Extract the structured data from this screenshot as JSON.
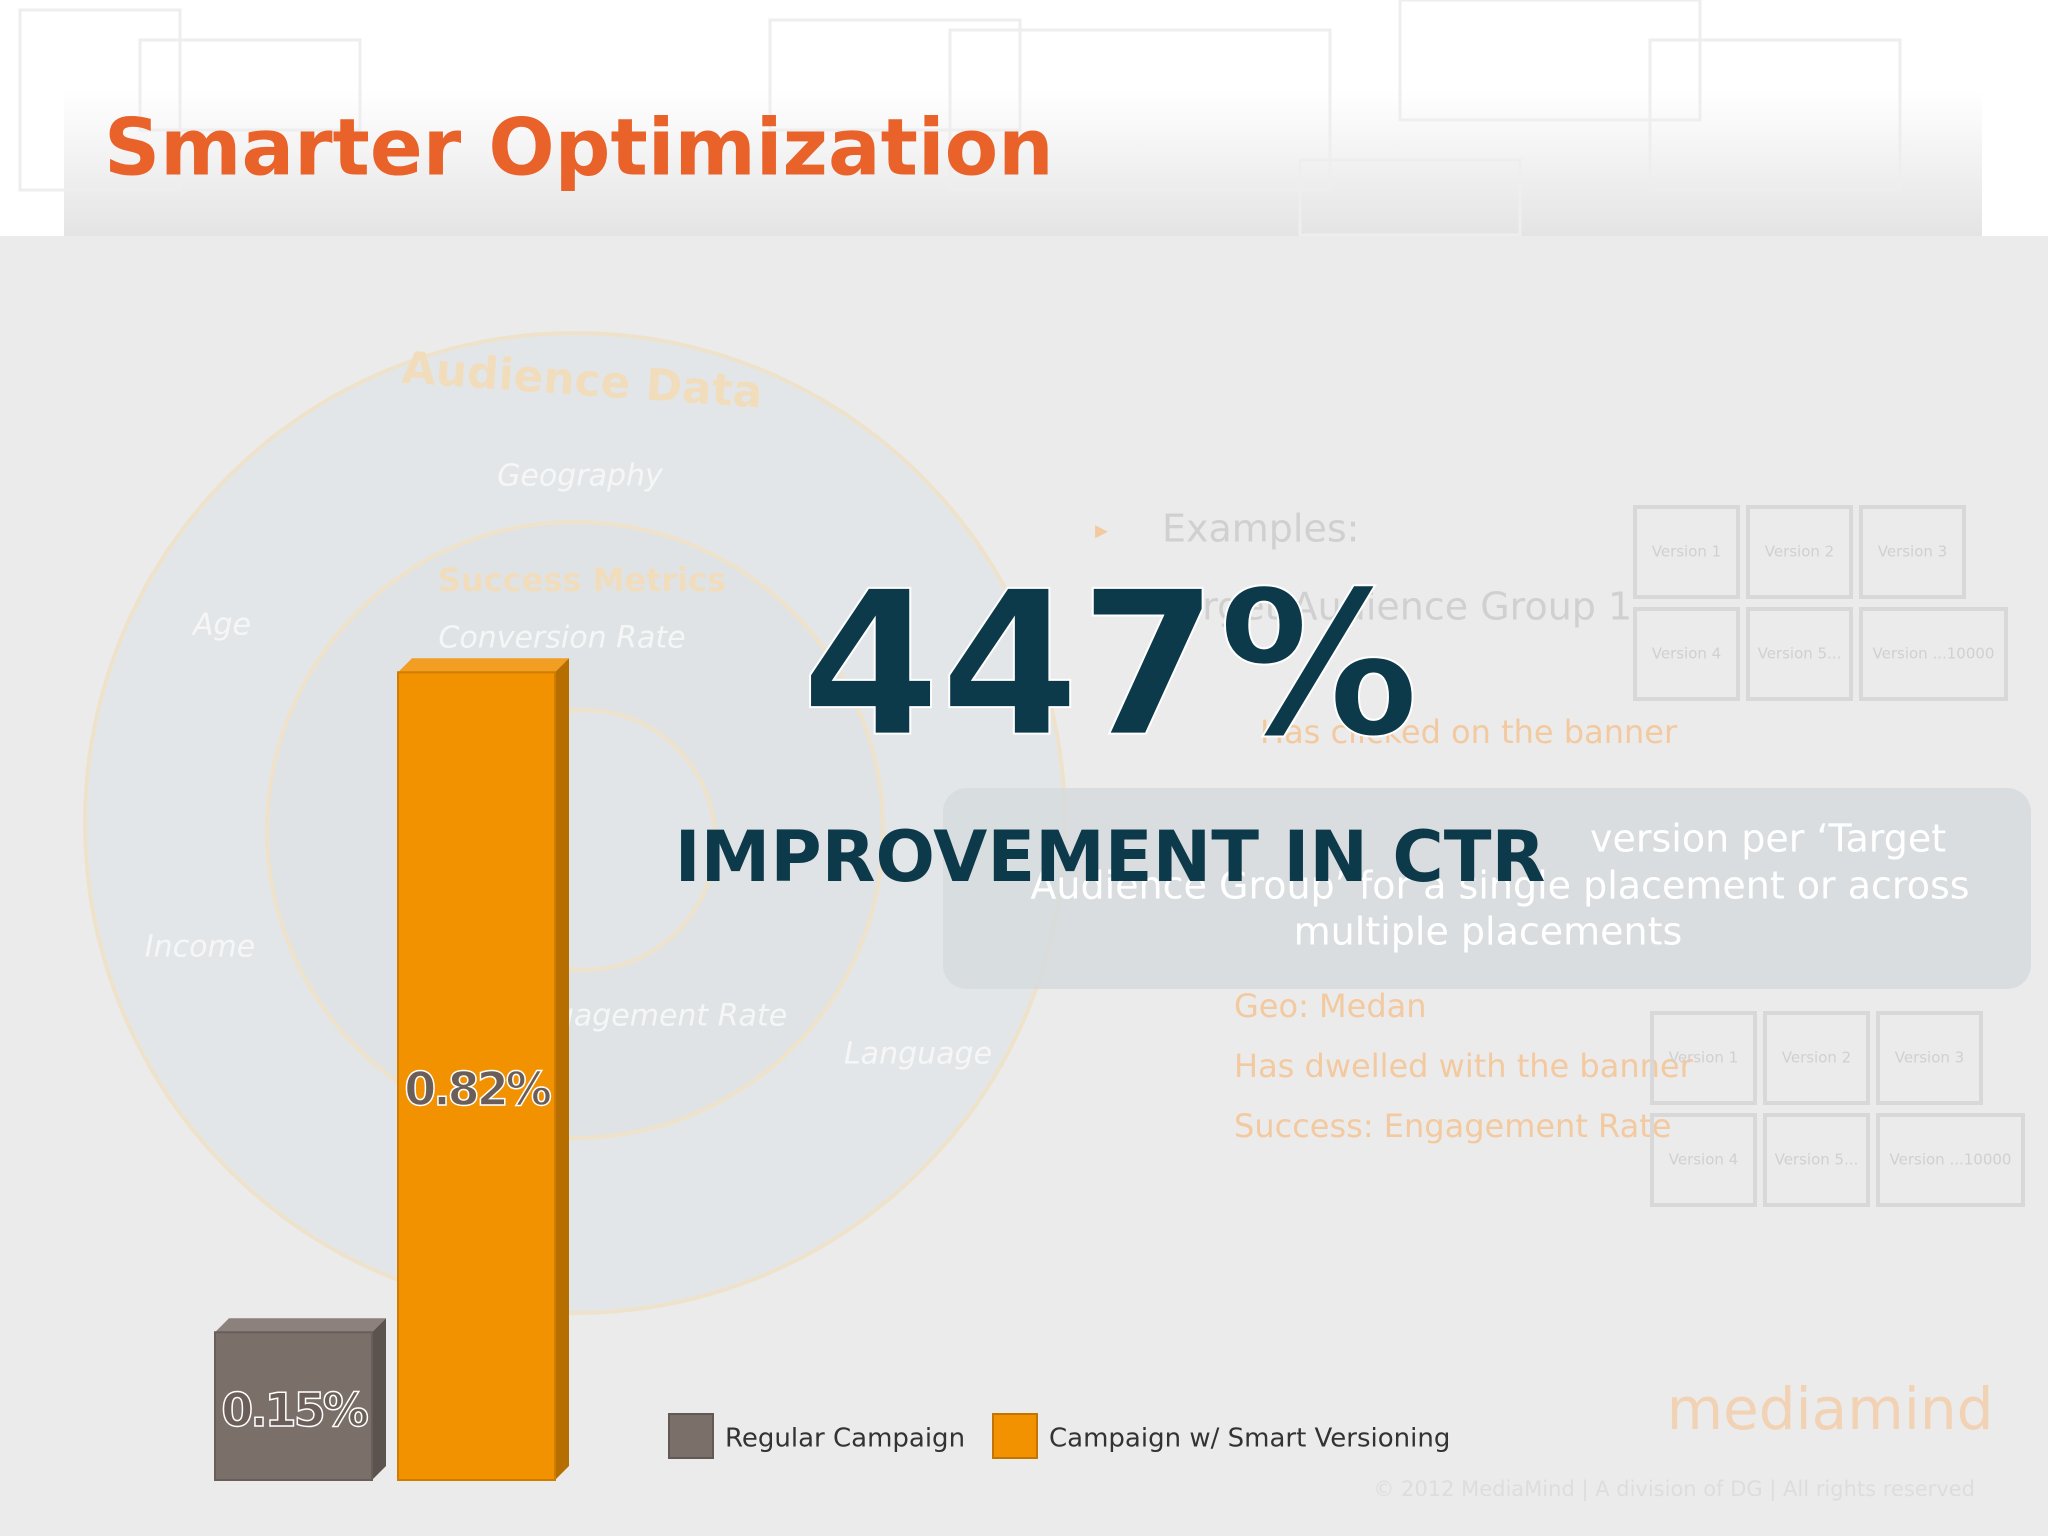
{
  "chart_data": {
    "type": "bar",
    "title": "Smarter Optimization",
    "annotations": [
      "447%",
      "IMPROVEMENT IN CTR"
    ],
    "series": [
      {
        "name": "Regular Campaign",
        "color": "#7b6f69",
        "values": [
          0.15
        ],
        "value_labels": [
          "0.15%"
        ]
      },
      {
        "name": "Campaign w/ Smart Versioning",
        "color": "#f39200",
        "values": [
          0.82
        ],
        "value_labels": [
          "0.82%"
        ]
      }
    ]
  },
  "background": {
    "circle_labels": [
      "Audience Data",
      "Geography",
      "Age",
      "Income",
      "Language",
      "Success Metrics",
      "Conversion Rate",
      "Engagement Rate"
    ],
    "bullets": [
      "Examples:",
      "Target Audience Group 1",
      "Has clicked on the banner",
      "Geo: Medan",
      "Has dwelled with the banner",
      "Success: Engagement Rate"
    ],
    "panel_text": [
      "version per ‘Target",
      "Audience Group’ for a single placement or across",
      "multiple placements"
    ],
    "versions": [
      "Version 1",
      "Version 2",
      "Version 3",
      "Version 4",
      "Version 5...",
      "Version ...10000"
    ],
    "logo": "mediamind",
    "copyright": "© 2012 MediaMind | A division of DG | All rights reserved"
  }
}
